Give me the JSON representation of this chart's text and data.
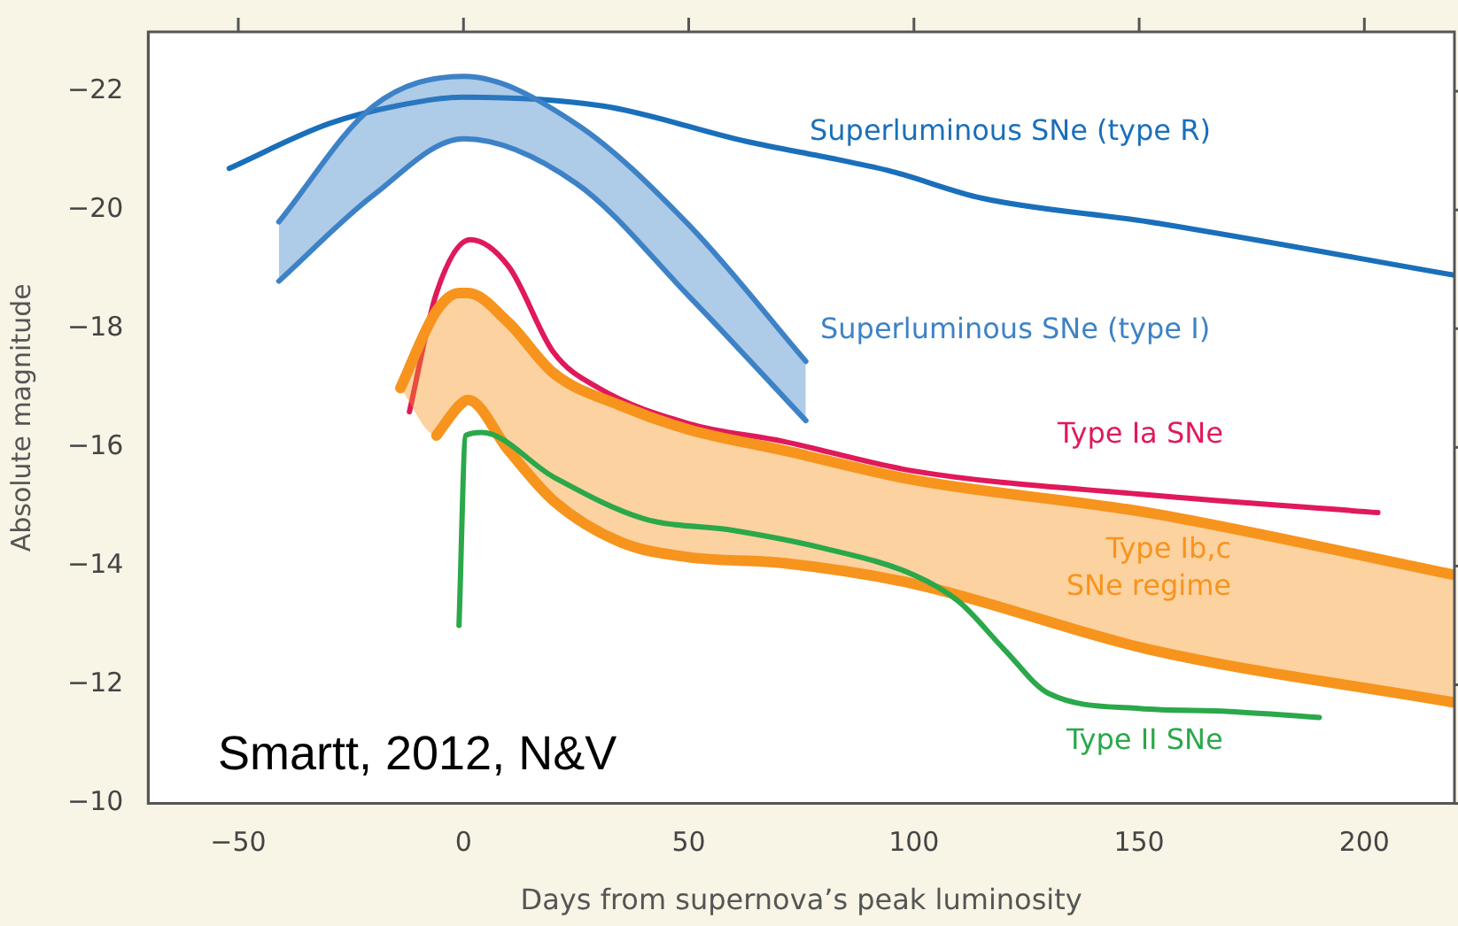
{
  "chart_data": {
    "type": "line",
    "xlabel": "Days from supernova’s peak luminosity",
    "ylabel": "Absolute magnitude",
    "xlim": [
      -70,
      220
    ],
    "ylim": [
      -10,
      -23
    ],
    "xticks": [
      -50,
      0,
      50,
      100,
      150,
      200
    ],
    "yticks": [
      -22,
      -20,
      -18,
      -16,
      -14,
      -12,
      -10
    ],
    "grid": false,
    "legend": false,
    "marker": "none",
    "line_style": "solid",
    "annotations": [
      "Smartt, 2012, N&V"
    ],
    "series": [
      {
        "name": "Superluminous SNe (type R)",
        "color": "#1a6fba",
        "x": [
          -52,
          -30,
          -15,
          0,
          31,
          63,
          83,
          95,
          115,
          152,
          220
        ],
        "values": [
          -20.7,
          -21.45,
          -21.75,
          -21.9,
          -21.75,
          -21.15,
          -20.85,
          -20.65,
          -20.2,
          -19.8,
          -18.9
        ]
      },
      {
        "name": "Superluminous SNe (type I)",
        "color": "#3d82c6",
        "x": [
          -41,
          -20,
          0,
          25,
          50,
          76
        ],
        "values": [
          -19.8,
          -21.75,
          -22.25,
          -21.45,
          -19.75,
          -17.45
        ],
        "upper": [
          -19.8,
          -21.75,
          -22.25,
          -21.45,
          -19.75,
          -17.45
        ],
        "lower": [
          -18.8,
          -20.25,
          -21.2,
          -20.45,
          -18.55,
          -16.45
        ]
      },
      {
        "color": "#3d82c6",
        "x": [
          -41,
          -20,
          0,
          25,
          50,
          76
        ],
        "values": [
          -18.8,
          -20.25,
          -21.2,
          -20.45,
          -18.55,
          -16.45
        ]
      },
      {
        "name": "Type Ia SNe",
        "color": "#e0195a",
        "x": [
          -12,
          -6,
          1.5,
          10,
          20,
          30,
          50,
          71,
          100,
          152,
          203
        ],
        "values": [
          -16.6,
          -18.6,
          -19.5,
          -19.05,
          -17.6,
          -17.0,
          -16.4,
          -16.1,
          -15.6,
          -15.2,
          -14.9
        ]
      },
      {
        "name": "Type Ib,c SNe regime",
        "color": "#f7941d",
        "x": [
          -14,
          -6,
          -1,
          1,
          10,
          20,
          35,
          50,
          71,
          100,
          152,
          220
        ],
        "values": [
          -17.0,
          -18.3,
          -18.6,
          -18.6,
          -18.1,
          -17.25,
          -16.7,
          -16.3,
          -15.95,
          -15.45,
          -14.9,
          -13.85
        ],
        "upper": [
          -17.0,
          -18.3,
          -18.6,
          -18.6,
          -18.1,
          -17.25,
          -16.7,
          -16.3,
          -15.95,
          -15.45,
          -14.9,
          -13.85
        ],
        "lower": [
          -17.0,
          -16.2,
          -16.7,
          -16.8,
          -15.95,
          -15.1,
          -14.4,
          -14.15,
          -14.05,
          -13.7,
          -12.6,
          -11.7
        ]
      },
      {
        "color": "#f7941d",
        "x": [
          -6,
          -1,
          1,
          10,
          20,
          35,
          50,
          71,
          100,
          152,
          220
        ],
        "values": [
          -16.2,
          -16.7,
          -16.8,
          -15.95,
          -15.1,
          -14.4,
          -14.15,
          -14.05,
          -13.7,
          -12.6,
          -11.7
        ]
      },
      {
        "name": "Type II SNe",
        "color": "#2aa84a",
        "x": [
          -1,
          0.5,
          4,
          20,
          40,
          60,
          80,
          100,
          110,
          120,
          130,
          150,
          170,
          190
        ],
        "values": [
          -13.0,
          -16.2,
          -16.25,
          -15.5,
          -14.8,
          -14.6,
          -14.3,
          -13.85,
          -13.4,
          -12.6,
          -11.85,
          -11.6,
          -11.55,
          -11.45
        ]
      }
    ]
  }
}
